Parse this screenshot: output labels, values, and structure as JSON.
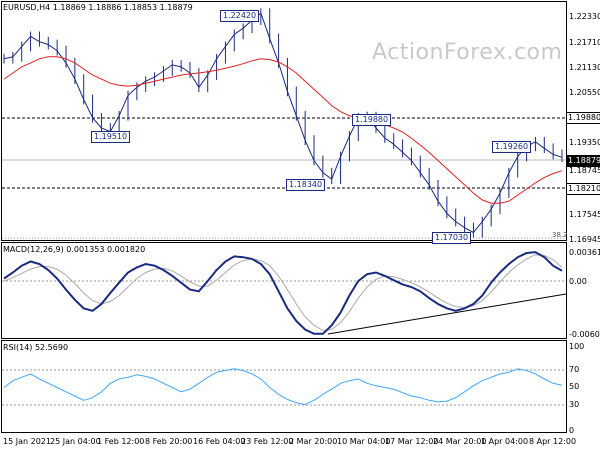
{
  "main": {
    "title": "EURUSD,H4  1.18869 1.18886 1.18853 1.18879",
    "watermark": "ActionForex.com",
    "fib_label": "38.2",
    "last_price": "1.18879",
    "y_ticks": [
      "1.22330",
      "1.21710",
      "1.21130",
      "1.20550",
      "1.19880",
      "1.19350",
      "1.18745",
      "1.18210",
      "1.17545",
      "1.16945"
    ],
    "annotations": [
      "1.22420",
      "1.19510",
      "1.18340",
      "1.19880",
      "1.19260",
      "1.17030",
      "1.18210"
    ],
    "levels": {
      "high_dotted": "1.19880",
      "low_dotted": "1.18210"
    }
  },
  "macd": {
    "title": "MACD(12,26,9) 0.001353 0.001820",
    "y_ticks": [
      "0.003615",
      "0.00",
      "-0.006026"
    ]
  },
  "rsi": {
    "title": "RSI(14) 52.5690",
    "y_ticks": [
      "100",
      "70",
      "50",
      "30",
      "0"
    ]
  },
  "x_axis": [
    "15 Jan 2021",
    "25 Jan 04:00",
    "1 Feb 12:00",
    "8 Feb 20:00",
    "16 Feb 04:00",
    "23 Feb 12:00",
    "2 Mar 20:00",
    "10 Mar 04:00",
    "17 Mar 12:00",
    "24 Mar 20:00",
    "1 Apr 04:00",
    "8 Apr 12:00"
  ],
  "colors": {
    "ma": "#e02020",
    "candle": "#1a2a80",
    "macd": "#1a2a80",
    "signal": "#aaaaaa",
    "rsi": "#3fa8ff"
  },
  "chart_data": [
    {
      "type": "line",
      "title": "EURUSD,H4",
      "series": [
        {
          "name": "EURUSD",
          "values": [
            1.213,
            1.2135,
            1.216,
            1.2185,
            1.2172,
            1.2165,
            1.215,
            1.212,
            1.208,
            1.203,
            1.1985,
            1.196,
            1.1951,
            1.199,
            1.204,
            1.206,
            1.2075,
            1.2085,
            1.21,
            1.2115,
            1.211,
            1.2095,
            1.206,
            1.209,
            1.213,
            1.216,
            1.219,
            1.2205,
            1.2225,
            1.2242,
            1.218,
            1.212,
            1.205,
            1.199,
            1.193,
            1.188,
            1.185,
            1.1834,
            1.189,
            1.194,
            1.1985,
            1.1988,
            1.196,
            1.1935,
            1.192,
            1.19,
            1.188,
            1.185,
            1.182,
            1.178,
            1.175,
            1.173,
            1.1715,
            1.1703,
            1.173,
            1.176,
            1.18,
            1.185,
            1.189,
            1.1915,
            1.1926,
            1.191,
            1.1895,
            1.1888
          ]
        },
        {
          "name": "MA",
          "values": [
            1.208,
            1.2095,
            1.211,
            1.212,
            1.213,
            1.2135,
            1.2135,
            1.213,
            1.212,
            1.2105,
            1.209,
            1.208,
            1.207,
            1.2065,
            1.2063,
            1.2065,
            1.207,
            1.2075,
            1.208,
            1.2085,
            1.209,
            1.2093,
            1.2095,
            1.2098,
            1.2102,
            1.2107,
            1.2112,
            1.2118,
            1.2125,
            1.213,
            1.2128,
            1.2122,
            1.211,
            1.2095,
            1.2075,
            1.2055,
            1.2035,
            1.2015,
            1.2,
            1.199,
            1.1985,
            1.198,
            1.1975,
            1.1968,
            1.196,
            1.195,
            1.1935,
            1.1918,
            1.19,
            1.188,
            1.186,
            1.184,
            1.182,
            1.18,
            1.1783,
            1.1775,
            1.1775,
            1.178,
            1.1795,
            1.181,
            1.1825,
            1.1838,
            1.1848,
            1.1855
          ]
        }
      ],
      "ylim": [
        1.16945,
        1.2245
      ]
    },
    {
      "type": "line",
      "title": "MACD(12,26,9)",
      "series": [
        {
          "name": "MACD",
          "values": [
            0.0005,
            0.0012,
            0.002,
            0.0025,
            0.0022,
            0.0015,
            0.0005,
            -0.0008,
            -0.002,
            -0.003,
            -0.0033,
            -0.0025,
            -0.0012,
            0.0,
            0.0012,
            0.0018,
            0.0022,
            0.002,
            0.0015,
            0.0008,
            0.0,
            -0.0008,
            -0.001,
            0.0002,
            0.0015,
            0.0025,
            0.0031,
            0.003,
            0.0028,
            0.0022,
            0.001,
            -0.001,
            -0.003,
            -0.0045,
            -0.0055,
            -0.006,
            -0.006,
            -0.005,
            -0.0035,
            -0.0015,
            0.0002,
            0.001,
            0.0012,
            0.0008,
            0.0003,
            -0.0002,
            -0.0005,
            -0.001,
            -0.0018,
            -0.0025,
            -0.003,
            -0.0033,
            -0.003,
            -0.0025,
            -0.0015,
            0.0,
            0.0012,
            0.0022,
            0.003,
            0.0035,
            0.0036,
            0.003,
            0.002,
            0.0014
          ]
        },
        {
          "name": "Signal",
          "values": [
            0.0002,
            0.0006,
            0.0011,
            0.0016,
            0.0019,
            0.0019,
            0.0016,
            0.0009,
            -0.0001,
            -0.0012,
            -0.0021,
            -0.0025,
            -0.0022,
            -0.0015,
            -0.0005,
            0.0005,
            0.0012,
            0.0016,
            0.0017,
            0.0014,
            0.0008,
            0.0001,
            -0.0004,
            -0.0004,
            0.0003,
            0.0012,
            0.0021,
            0.0026,
            0.0028,
            0.0026,
            0.002,
            0.0008,
            -0.0008,
            -0.0025,
            -0.004,
            -0.005,
            -0.0056,
            -0.0055,
            -0.0047,
            -0.0034,
            -0.0018,
            -0.0005,
            0.0004,
            0.0008,
            0.0007,
            0.0004,
            0.0,
            -0.0005,
            -0.0011,
            -0.0018,
            -0.0024,
            -0.0028,
            -0.0029,
            -0.0027,
            -0.0021,
            -0.0011,
            0.0001,
            0.0012,
            0.0021,
            0.0028,
            0.0033,
            0.0032,
            0.0027,
            0.0018
          ]
        }
      ],
      "ylim": [
        -0.006026,
        0.003615
      ]
    },
    {
      "type": "line",
      "title": "RSI(14)",
      "series": [
        {
          "name": "RSI",
          "values": [
            50,
            58,
            62,
            66,
            60,
            55,
            50,
            45,
            40,
            35,
            38,
            45,
            55,
            60,
            62,
            65,
            63,
            60,
            55,
            50,
            45,
            48,
            55,
            62,
            68,
            70,
            72,
            70,
            66,
            60,
            50,
            42,
            36,
            32,
            30,
            35,
            42,
            48,
            55,
            58,
            60,
            55,
            52,
            50,
            48,
            44,
            40,
            38,
            35,
            33,
            34,
            38,
            45,
            52,
            58,
            62,
            66,
            68,
            72,
            70,
            66,
            60,
            55,
            52.569
          ]
        }
      ],
      "ylim": [
        0,
        100
      ]
    }
  ]
}
